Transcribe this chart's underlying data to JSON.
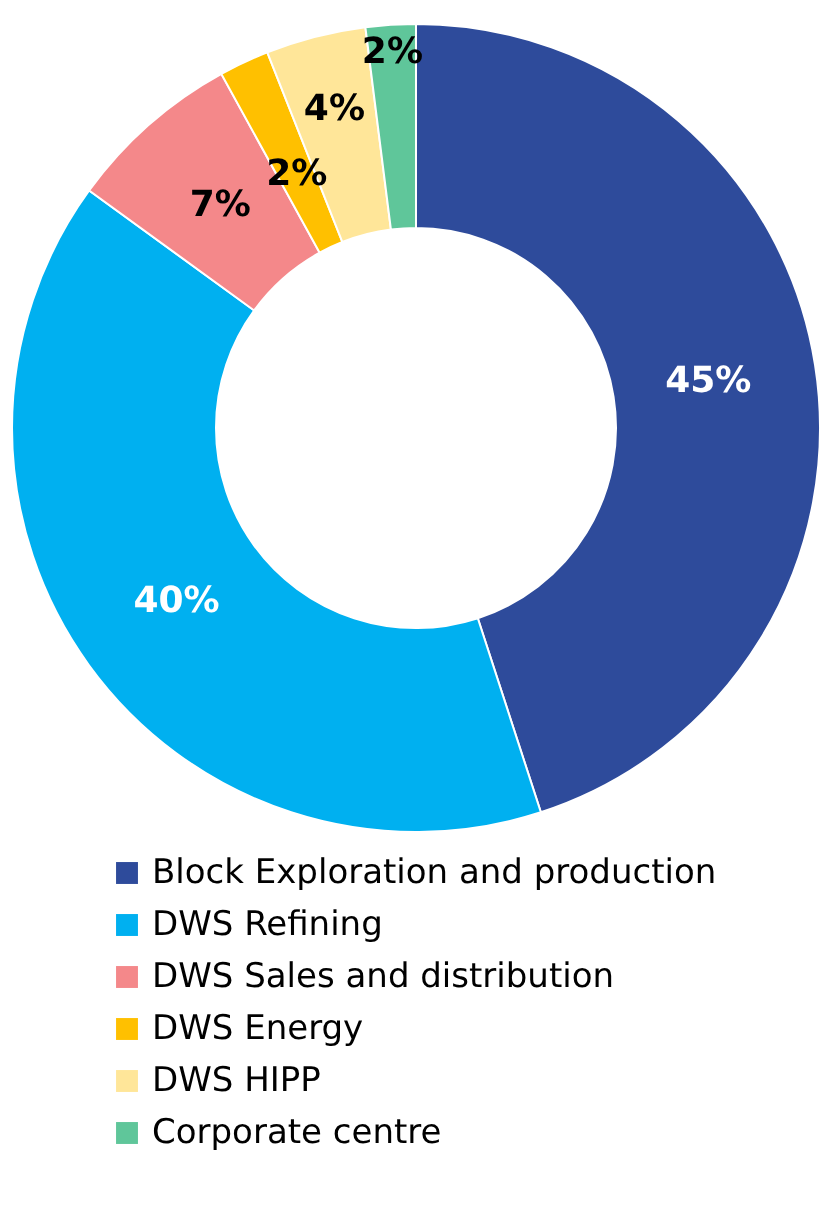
{
  "chart_data": {
    "type": "donut",
    "categories": [
      "Block Exploration and production",
      "DWS Refining",
      "DWS Sales and distribution",
      "DWS Energy",
      "DWS HIPP",
      "Corporate centre"
    ],
    "values": [
      45,
      40,
      7,
      2,
      4,
      2
    ],
    "colors": [
      "#2e4b9b",
      "#00b0f0",
      "#f4888a",
      "#ffc000",
      "#ffe699",
      "#5fc69a"
    ],
    "value_labels": [
      "45%",
      "40%",
      "7%",
      "2%",
      "4%",
      "2%"
    ],
    "legend": "bottom"
  }
}
